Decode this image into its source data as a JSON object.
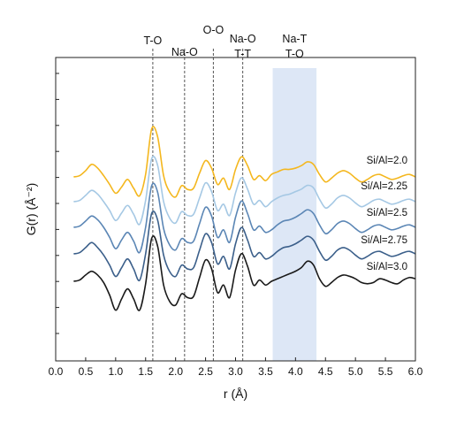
{
  "chart_data": {
    "type": "line",
    "title": "",
    "xlabel": "r (Å)",
    "ylabel": "G(r) (Å⁻²)",
    "xlim": [
      0,
      6
    ],
    "x_ticks": [
      "0.0",
      "0.5",
      "1.0",
      "1.5",
      "2.0",
      "2.5",
      "3.0",
      "3.5",
      "4.0",
      "4.5",
      "5.0",
      "5.5",
      "6.0"
    ],
    "y_tick_labels": false,
    "x": [
      0.0,
      0.1,
      0.2,
      0.3,
      0.4,
      0.5,
      0.6,
      0.7,
      0.8,
      0.9,
      1.0,
      1.1,
      1.2,
      1.3,
      1.4,
      1.5,
      1.6,
      1.7,
      1.8,
      1.9,
      2.0,
      2.1,
      2.2,
      2.3,
      2.4,
      2.5,
      2.6,
      2.7,
      2.8,
      2.9,
      3.0,
      3.1,
      3.2,
      3.3,
      3.4,
      3.5,
      3.6,
      3.7,
      3.8,
      3.9,
      4.0,
      4.1,
      4.2,
      4.3,
      4.4,
      4.5,
      4.6,
      4.7,
      4.8,
      4.9,
      5.0,
      5.1,
      5.2,
      5.3,
      5.4,
      5.5,
      5.6,
      5.7,
      5.8,
      5.9,
      6.0
    ],
    "series": [
      {
        "name": "Si/Al=2.0",
        "color": "#f4b71e",
        "values": [
          0.0,
          0.0,
          0.0,
          0.0,
          0.1,
          0.5,
          1.0,
          0.7,
          0.1,
          -0.6,
          -1.3,
          -0.8,
          -0.2,
          -0.9,
          -1.5,
          0.2,
          3.8,
          3.2,
          0.1,
          -1.2,
          -1.6,
          -0.7,
          -1.0,
          -0.9,
          0.3,
          1.3,
          0.7,
          -0.6,
          -0.1,
          -1.0,
          0.6,
          1.6,
          0.9,
          -0.2,
          0.1,
          -0.3,
          0.2,
          0.4,
          0.6,
          0.6,
          0.7,
          0.9,
          1.2,
          1.0,
          0.2,
          -0.4,
          -0.1,
          0.3,
          0.5,
          0.3,
          -0.1,
          -0.4,
          -0.2,
          0.1,
          0.2,
          0.0,
          -0.2,
          -0.1,
          0.1,
          0.2,
          0.0
        ]
      },
      {
        "name": "Si/Al=2.25",
        "color": "#a5c8e4",
        "values": [
          0.0,
          0.0,
          0.0,
          0.0,
          0.1,
          0.5,
          0.9,
          0.6,
          0.0,
          -0.7,
          -1.5,
          -0.9,
          -0.3,
          -1.0,
          -1.8,
          0.1,
          3.4,
          2.9,
          0.0,
          -1.3,
          -1.7,
          -0.8,
          -1.1,
          -1.0,
          0.3,
          1.5,
          0.8,
          -0.7,
          -0.2,
          -1.1,
          0.7,
          1.9,
          1.0,
          -0.2,
          0.1,
          -0.4,
          0.0,
          0.3,
          0.5,
          0.6,
          0.8,
          1.0,
          1.3,
          1.1,
          0.2,
          -0.5,
          -0.2,
          0.3,
          0.5,
          0.3,
          -0.1,
          -0.4,
          -0.2,
          0.1,
          0.2,
          0.0,
          -0.2,
          -0.1,
          0.1,
          0.2,
          0.0
        ]
      },
      {
        "name": "Si/Al=2.5",
        "color": "#5b86b5",
        "values": [
          0.0,
          0.0,
          0.0,
          0.0,
          0.1,
          0.5,
          0.9,
          0.6,
          0.0,
          -0.8,
          -1.7,
          -1.0,
          -0.4,
          -1.1,
          -2.0,
          0.0,
          3.3,
          2.8,
          -0.1,
          -1.4,
          -1.8,
          -0.9,
          -1.2,
          -1.1,
          0.3,
          1.6,
          0.9,
          -0.8,
          -0.2,
          -1.2,
          0.8,
          2.1,
          1.1,
          -0.2,
          0.1,
          -0.4,
          -0.2,
          0.2,
          0.5,
          0.6,
          0.8,
          1.1,
          1.4,
          1.1,
          0.2,
          -0.5,
          -0.2,
          0.3,
          0.5,
          0.3,
          -0.1,
          -0.4,
          -0.2,
          0.1,
          0.2,
          0.0,
          -0.2,
          -0.1,
          0.1,
          0.2,
          0.0
        ]
      },
      {
        "name": "Si/Al=2.75",
        "color": "#3b5f8a",
        "values": [
          0.0,
          0.0,
          0.0,
          0.0,
          0.1,
          0.5,
          0.9,
          0.5,
          -0.1,
          -0.9,
          -1.8,
          -1.1,
          -0.4,
          -1.2,
          -2.1,
          0.0,
          3.2,
          2.7,
          -0.1,
          -1.4,
          -1.8,
          -0.9,
          -1.2,
          -1.1,
          0.3,
          1.6,
          0.9,
          -0.8,
          -0.2,
          -1.2,
          0.8,
          2.1,
          1.1,
          -0.2,
          0.1,
          -0.4,
          -0.2,
          0.2,
          0.5,
          0.6,
          0.8,
          1.1,
          1.4,
          1.1,
          0.2,
          -0.5,
          -0.2,
          0.3,
          0.5,
          0.3,
          -0.1,
          -0.4,
          -0.2,
          0.1,
          0.2,
          0.0,
          -0.2,
          -0.1,
          0.1,
          0.2,
          0.0
        ]
      },
      {
        "name": "Si/Al=3.0",
        "color": "#1a1a1a",
        "values": [
          0.0,
          0.0,
          0.0,
          0.0,
          0.1,
          0.5,
          0.8,
          0.5,
          -0.1,
          -1.1,
          -2.3,
          -1.4,
          -0.6,
          -1.4,
          -2.3,
          -0.2,
          3.4,
          2.8,
          -0.3,
          -1.6,
          -1.9,
          -1.0,
          -1.3,
          -1.2,
          0.3,
          1.7,
          1.0,
          -0.9,
          -0.3,
          -1.3,
          0.9,
          2.2,
          1.2,
          -0.3,
          0.1,
          -0.3,
          0.0,
          0.2,
          0.4,
          0.6,
          0.8,
          1.1,
          1.6,
          1.3,
          0.2,
          -0.4,
          -0.1,
          0.3,
          0.5,
          0.4,
          0.2,
          -0.1,
          -0.2,
          -0.1,
          0.2,
          0.1,
          -0.1,
          -0.2,
          0.1,
          0.3,
          0.2
        ]
      }
    ],
    "peak_lines": [
      {
        "x": 1.62,
        "label": "T-O"
      },
      {
        "x": 2.15,
        "label": "Na-O"
      },
      {
        "x": 2.63,
        "label": "O-O"
      },
      {
        "x": 3.12,
        "label": "Na-O\nT-T"
      }
    ],
    "shaded_region": {
      "x0": 3.62,
      "x1": 4.35,
      "label": "Na-T\nT-O",
      "color": "#dde7f6"
    },
    "grid": false,
    "legend": "inline labels at right"
  }
}
